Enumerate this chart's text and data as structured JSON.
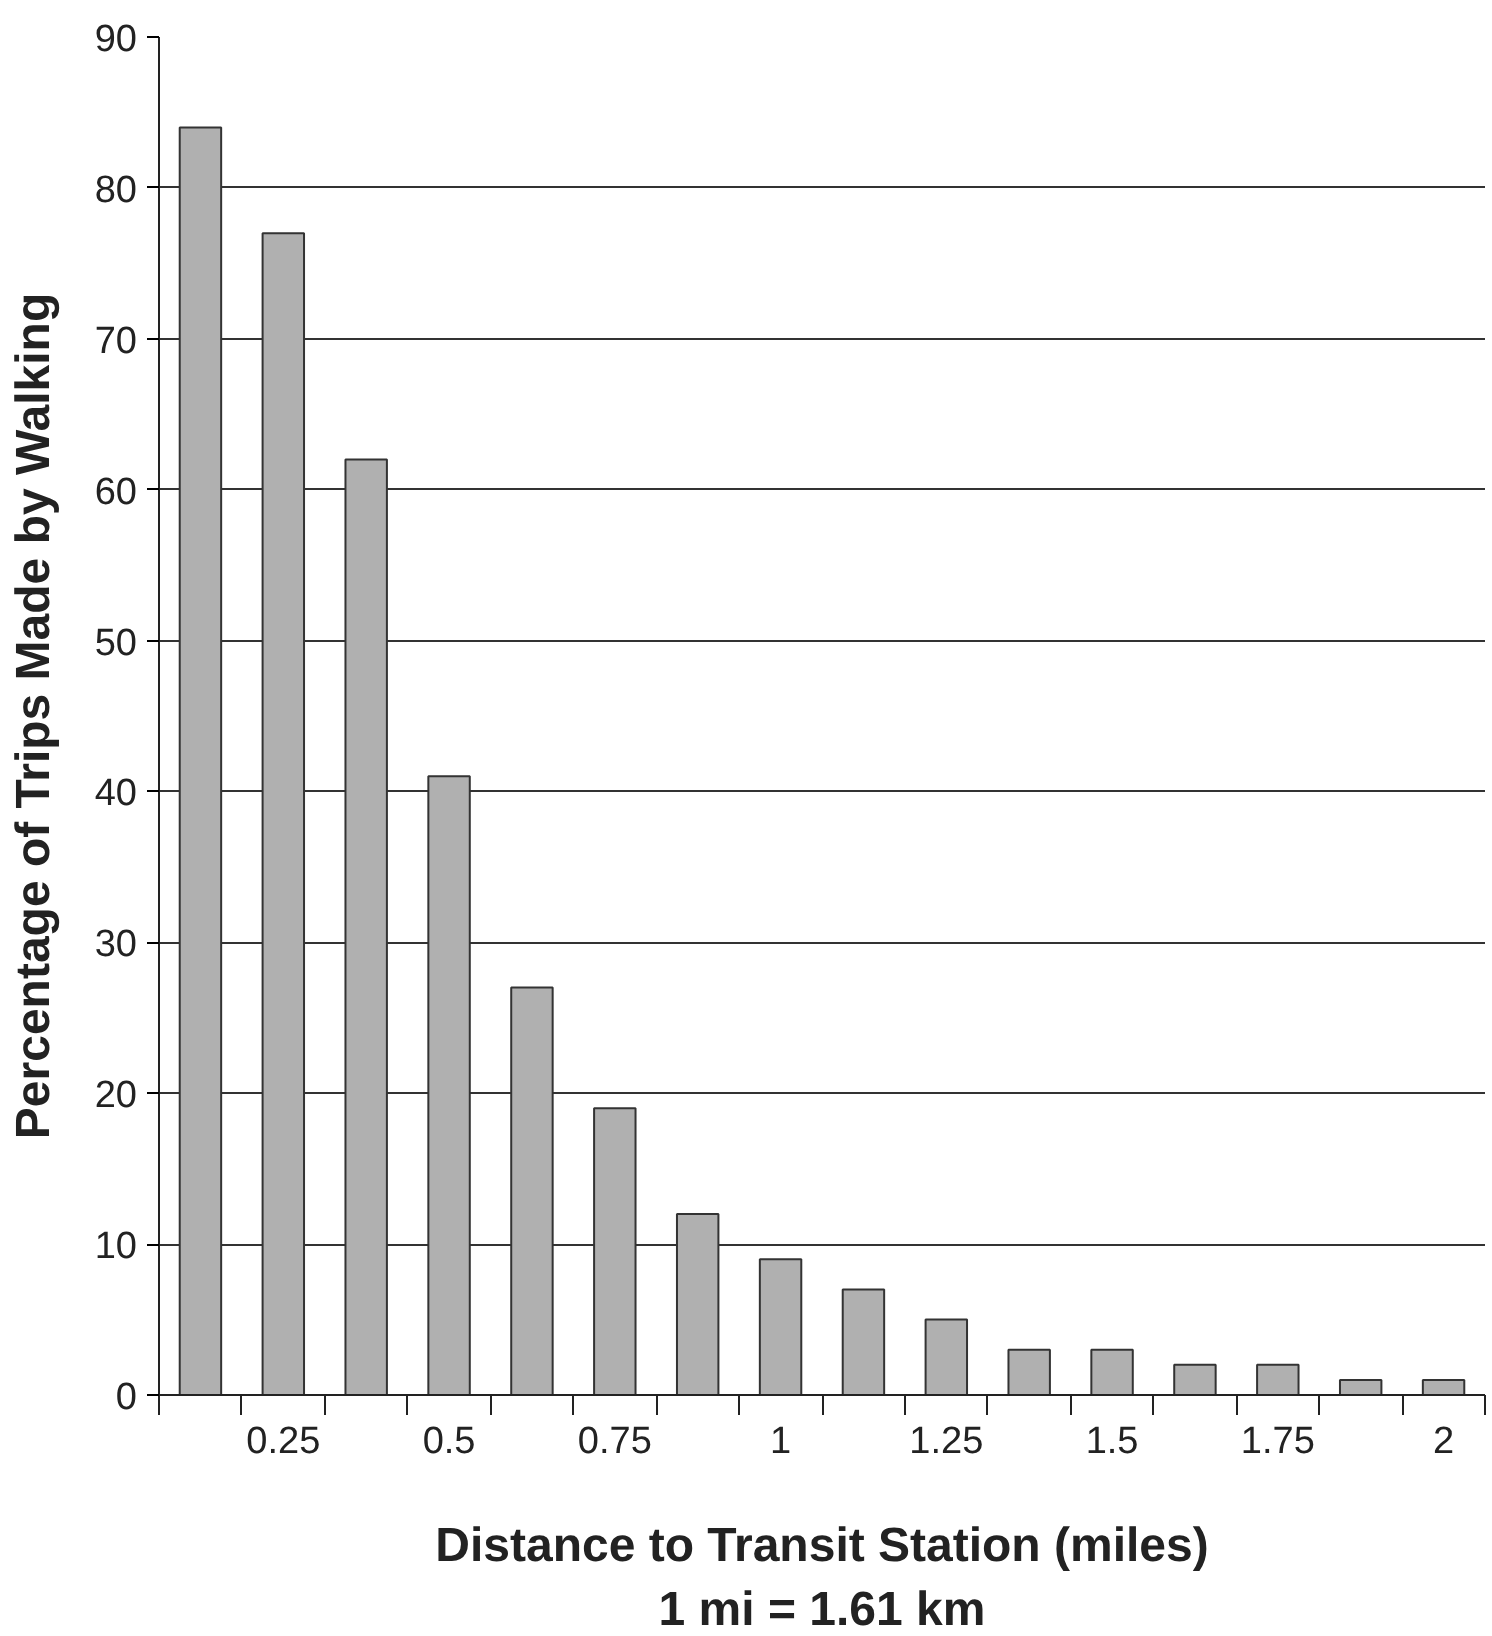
{
  "chart_data": {
    "type": "bar",
    "xlabel": "Distance to Transit Station (miles)",
    "ylabel": "Percentage of Trips Made by Walking",
    "annotations": [
      "1 mi = 1.61 km"
    ],
    "categories": [
      null,
      "0.25",
      null,
      "0.5",
      null,
      "0.75",
      null,
      "1",
      null,
      "1.25",
      null,
      "1.5",
      null,
      "1.75",
      null,
      "2"
    ],
    "values": [
      84,
      77,
      62,
      41,
      27,
      19,
      12,
      9,
      7,
      5,
      3,
      3,
      2,
      2,
      1,
      1
    ],
    "color": "#b0b0b0",
    "ylim": [
      0,
      90
    ],
    "yticks": [
      0,
      10,
      20,
      30,
      40,
      50,
      60,
      70,
      80,
      90
    ],
    "grid": "y"
  }
}
